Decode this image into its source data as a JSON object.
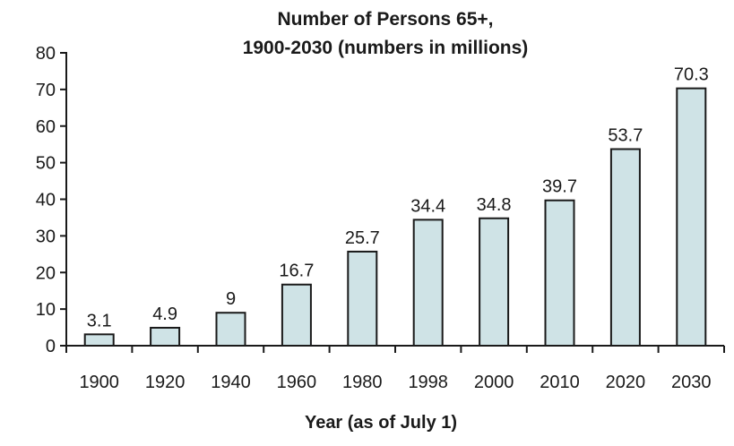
{
  "chart_data": {
    "type": "bar",
    "title": [
      "Number of Persons 65+,",
      "1900-2030 (numbers in millions)"
    ],
    "xlabel": "Year (as of July 1)",
    "ylabel": "",
    "categories": [
      "1900",
      "1920",
      "1940",
      "1960",
      "1980",
      "1998",
      "2000",
      "2010",
      "2020",
      "2030"
    ],
    "values": [
      3.1,
      4.9,
      9,
      16.7,
      25.7,
      34.4,
      34.8,
      39.7,
      53.7,
      70.3
    ],
    "value_labels": [
      "3.1",
      "4.9",
      "9",
      "16.7",
      "25.7",
      "34.4",
      "34.8",
      "39.7",
      "53.7",
      "70.3"
    ],
    "ylim": [
      0,
      80
    ],
    "yticks": [
      0,
      10,
      20,
      30,
      40,
      50,
      60,
      70,
      80
    ],
    "grid": false,
    "legend": "none",
    "colors": {
      "bar_fill": "#cfe3e6",
      "bar_stroke": "#1a1a1a",
      "axis": "#1a1a1a",
      "text": "#1a1a1a"
    }
  }
}
